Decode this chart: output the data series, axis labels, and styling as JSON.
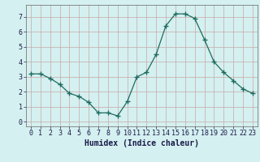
{
  "x": [
    0,
    1,
    2,
    3,
    4,
    5,
    6,
    7,
    8,
    9,
    10,
    11,
    12,
    13,
    14,
    15,
    16,
    17,
    18,
    19,
    20,
    21,
    22,
    23
  ],
  "y": [
    3.2,
    3.2,
    2.9,
    2.5,
    1.9,
    1.7,
    1.3,
    0.6,
    0.6,
    0.4,
    1.35,
    3.0,
    3.3,
    4.5,
    6.4,
    7.2,
    7.2,
    6.9,
    5.5,
    4.0,
    3.3,
    2.75,
    2.2,
    1.9
  ],
  "xlabel": "Humidex (Indice chaleur)",
  "xlim": [
    -0.5,
    23.5
  ],
  "ylim": [
    -0.3,
    7.8
  ],
  "yticks": [
    0,
    1,
    2,
    3,
    4,
    5,
    6,
    7
  ],
  "xticks": [
    0,
    1,
    2,
    3,
    4,
    5,
    6,
    7,
    8,
    9,
    10,
    11,
    12,
    13,
    14,
    15,
    16,
    17,
    18,
    19,
    20,
    21,
    22,
    23
  ],
  "line_color": "#1e6b5e",
  "marker": "+",
  "marker_size": 4.0,
  "bg_color": "#d5f0f0",
  "grid_color": "#c8a8a8",
  "tick_label_color": "#1a1a4a",
  "xlabel_fontsize": 7,
  "tick_fontsize": 6
}
